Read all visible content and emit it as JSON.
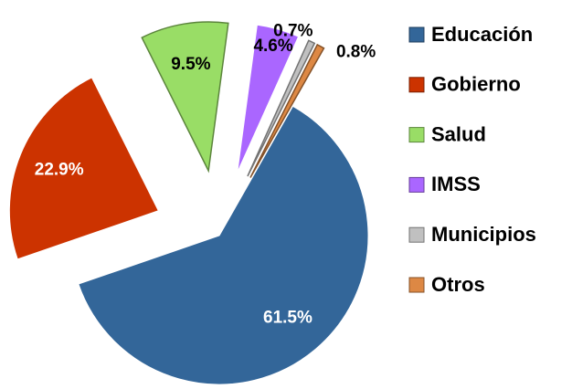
{
  "chart_data": {
    "type": "pie",
    "categories": [
      "Educación",
      "Gobierno",
      "Salud",
      "IMSS",
      "Municipios",
      "Otros"
    ],
    "values": [
      61.5,
      22.9,
      9.5,
      4.6,
      0.7,
      0.8
    ],
    "value_labels": [
      "61.5%",
      "22.9%",
      "9.5%",
      "4.6%",
      "0.7%",
      "0.8%"
    ],
    "colors": [
      "#336699",
      "#cc3300",
      "#99dd66",
      "#aa66ff",
      "#c0c0c0",
      "#dd8844"
    ],
    "legend": "right"
  }
}
